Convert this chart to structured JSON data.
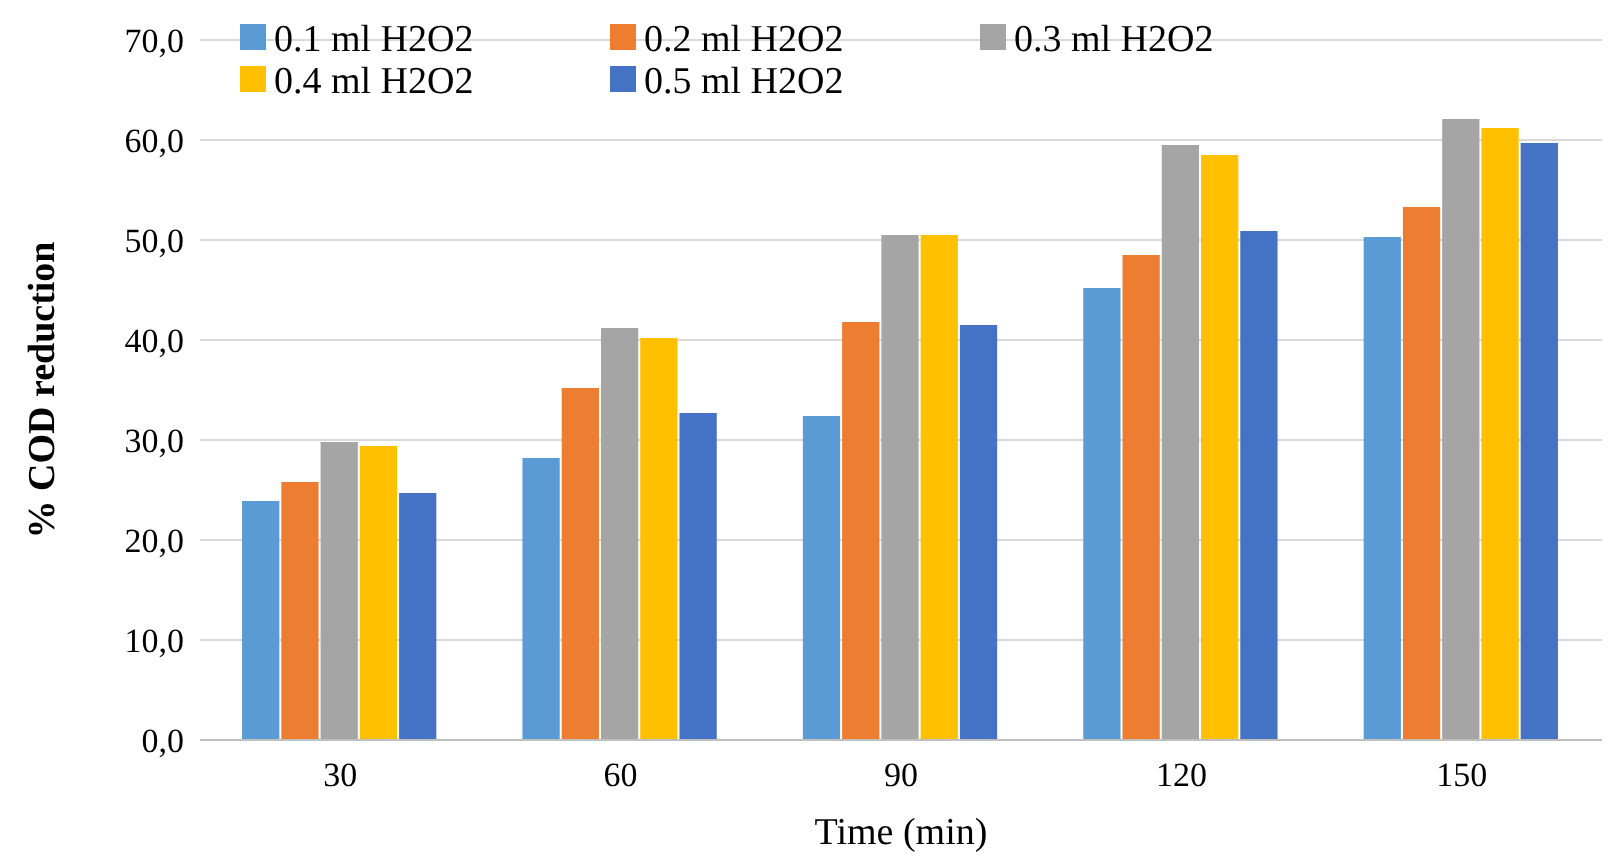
{
  "chart_data": {
    "type": "bar",
    "xlabel": "Time (min)",
    "ylabel": "% COD reduction",
    "categories": [
      "30",
      "60",
      "90",
      "120",
      "150"
    ],
    "series": [
      {
        "name": "0.1 ml H2O2",
        "color": "#5b9bd5",
        "values": [
          23.9,
          28.2,
          32.4,
          45.2,
          50.3
        ]
      },
      {
        "name": "0.2 ml H2O2",
        "color": "#ed7d31",
        "values": [
          25.8,
          35.2,
          41.8,
          48.5,
          53.3
        ]
      },
      {
        "name": "0.3 ml H2O2",
        "color": "#a5a5a5",
        "values": [
          29.8,
          41.2,
          50.5,
          59.5,
          62.1
        ]
      },
      {
        "name": "0.4 ml H2O2",
        "color": "#ffc000",
        "values": [
          29.4,
          40.2,
          50.5,
          58.5,
          61.2
        ]
      },
      {
        "name": "0.5 ml H2O2",
        "color": "#4472c4",
        "values": [
          24.7,
          32.7,
          41.5,
          50.9,
          59.7
        ]
      }
    ],
    "ylim": [
      0,
      70
    ],
    "yticks": [
      {
        "value": 0,
        "label": "0,0"
      },
      {
        "value": 10,
        "label": "10,0"
      },
      {
        "value": 20,
        "label": "20,0"
      },
      {
        "value": 30,
        "label": "30,0"
      },
      {
        "value": 40,
        "label": "40,0"
      },
      {
        "value": 50,
        "label": "50,0"
      },
      {
        "value": 60,
        "label": "60,0"
      },
      {
        "value": 70,
        "label": "70,0"
      }
    ],
    "grid": "y",
    "legend": "top left"
  }
}
